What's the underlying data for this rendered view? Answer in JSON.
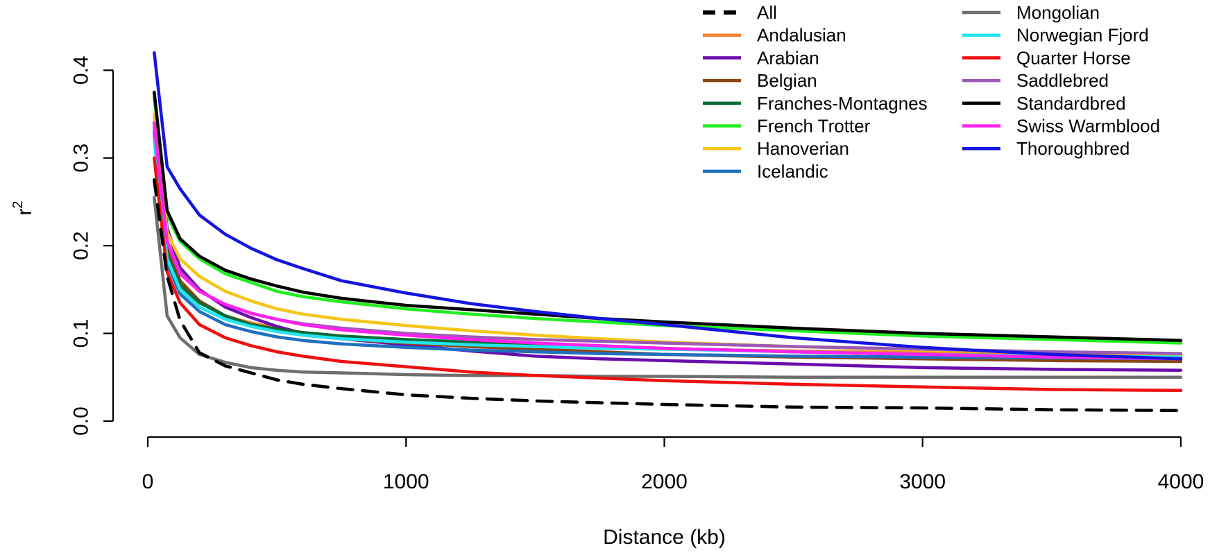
{
  "chart_data": {
    "type": "line",
    "title": "",
    "xlabel": "Distance (kb)",
    "ylabel": "r",
    "ylabel_superscript": "2",
    "xlim": [
      0,
      4000
    ],
    "ylim": [
      0,
      0.42
    ],
    "x_ticks": [
      0,
      1000,
      2000,
      3000,
      4000
    ],
    "x_tick_labels": [
      "0",
      "1000",
      "2000",
      "3000",
      "4000"
    ],
    "y_ticks": [
      0,
      0.1,
      0.2,
      0.3,
      0.4
    ],
    "y_tick_labels": [
      "0.0",
      "0.1",
      "0.2",
      "0.3",
      "0.4"
    ],
    "grid": false,
    "legend_position": "top-right",
    "x": [
      25,
      75,
      125,
      200,
      300,
      400,
      500,
      600,
      750,
      1000,
      1250,
      1500,
      1750,
      2000,
      2500,
      3000,
      3500,
      4000
    ],
    "series": [
      {
        "name": "All",
        "color": "#000000",
        "dashed": true,
        "values": [
          0.275,
          0.165,
          0.115,
          0.078,
          0.063,
          0.055,
          0.047,
          0.042,
          0.037,
          0.03,
          0.026,
          0.023,
          0.021,
          0.019,
          0.016,
          0.015,
          0.013,
          0.012
        ]
      },
      {
        "name": "Andalusian",
        "color": "#f58231",
        "values": [
          0.33,
          0.19,
          0.155,
          0.135,
          0.12,
          0.112,
          0.106,
          0.101,
          0.096,
          0.09,
          0.087,
          0.085,
          0.083,
          0.082,
          0.08,
          0.078,
          0.077,
          0.076
        ]
      },
      {
        "name": "Arabian",
        "color": "#6a0dad",
        "values": [
          0.34,
          0.22,
          0.175,
          0.15,
          0.13,
          0.118,
          0.108,
          0.1,
          0.094,
          0.087,
          0.08,
          0.074,
          0.071,
          0.069,
          0.065,
          0.061,
          0.059,
          0.058
        ]
      },
      {
        "name": "Belgian",
        "color": "#8b4513",
        "values": [
          0.33,
          0.2,
          0.16,
          0.137,
          0.12,
          0.11,
          0.103,
          0.098,
          0.094,
          0.089,
          0.085,
          0.082,
          0.079,
          0.076,
          0.073,
          0.071,
          0.069,
          0.068
        ]
      },
      {
        "name": "Franches-Montagnes",
        "color": "#0b6b35",
        "values": [
          0.33,
          0.19,
          0.155,
          0.135,
          0.12,
          0.11,
          0.105,
          0.101,
          0.097,
          0.093,
          0.09,
          0.087,
          0.085,
          0.083,
          0.079,
          0.076,
          0.074,
          0.072
        ]
      },
      {
        "name": "French Trotter",
        "color": "#22ee22",
        "values": [
          0.37,
          0.235,
          0.205,
          0.185,
          0.168,
          0.158,
          0.148,
          0.142,
          0.136,
          0.128,
          0.122,
          0.117,
          0.113,
          0.109,
          0.103,
          0.097,
          0.093,
          0.089
        ]
      },
      {
        "name": "Hanoverian",
        "color": "#f5c518",
        "values": [
          0.35,
          0.215,
          0.185,
          0.165,
          0.148,
          0.137,
          0.128,
          0.122,
          0.116,
          0.109,
          0.103,
          0.098,
          0.094,
          0.09,
          0.085,
          0.081,
          0.078,
          0.076
        ]
      },
      {
        "name": "Icelandic",
        "color": "#1f6fbf",
        "values": [
          0.33,
          0.18,
          0.145,
          0.125,
          0.11,
          0.102,
          0.096,
          0.092,
          0.088,
          0.084,
          0.081,
          0.079,
          0.077,
          0.076,
          0.074,
          0.073,
          0.072,
          0.071
        ]
      },
      {
        "name": "Mongolian",
        "color": "#6e6e6e",
        "values": [
          0.255,
          0.12,
          0.095,
          0.076,
          0.067,
          0.061,
          0.058,
          0.056,
          0.055,
          0.053,
          0.052,
          0.052,
          0.051,
          0.051,
          0.05,
          0.05,
          0.05,
          0.05
        ]
      },
      {
        "name": "Norwegian Fjord",
        "color": "#22e5f0",
        "values": [
          0.32,
          0.185,
          0.15,
          0.13,
          0.116,
          0.108,
          0.102,
          0.098,
          0.094,
          0.09,
          0.087,
          0.085,
          0.083,
          0.082,
          0.079,
          0.076,
          0.074,
          0.073
        ]
      },
      {
        "name": "Quarter Horse",
        "color": "#ee1111",
        "values": [
          0.3,
          0.17,
          0.135,
          0.11,
          0.095,
          0.086,
          0.079,
          0.074,
          0.068,
          0.062,
          0.056,
          0.052,
          0.049,
          0.046,
          0.042,
          0.039,
          0.036,
          0.035
        ]
      },
      {
        "name": "Saddlebred",
        "color": "#9b59b6",
        "values": [
          0.335,
          0.205,
          0.17,
          0.148,
          0.133,
          0.123,
          0.116,
          0.111,
          0.106,
          0.1,
          0.096,
          0.093,
          0.091,
          0.089,
          0.085,
          0.082,
          0.079,
          0.077
        ]
      },
      {
        "name": "Standardbred",
        "color": "#000000",
        "values": [
          0.375,
          0.24,
          0.208,
          0.188,
          0.172,
          0.162,
          0.154,
          0.147,
          0.14,
          0.132,
          0.127,
          0.122,
          0.117,
          0.113,
          0.106,
          0.1,
          0.096,
          0.092
        ]
      },
      {
        "name": "Swiss Warmblood",
        "color": "#ff22ee",
        "values": [
          0.34,
          0.205,
          0.168,
          0.148,
          0.133,
          0.123,
          0.116,
          0.11,
          0.104,
          0.098,
          0.093,
          0.089,
          0.086,
          0.083,
          0.079,
          0.076,
          0.073,
          0.071
        ]
      },
      {
        "name": "Thoroughbred",
        "color": "#1515e0",
        "values": [
          0.42,
          0.29,
          0.265,
          0.235,
          0.213,
          0.197,
          0.184,
          0.174,
          0.16,
          0.146,
          0.134,
          0.125,
          0.117,
          0.11,
          0.095,
          0.084,
          0.076,
          0.071
        ]
      }
    ]
  }
}
